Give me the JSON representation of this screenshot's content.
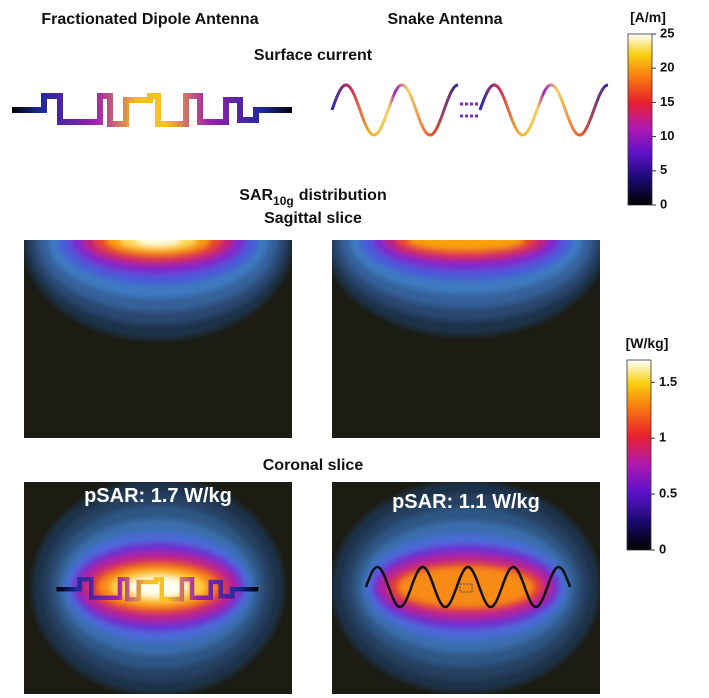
{
  "columns": [
    "Fractionated Dipole Antenna",
    "Snake Antenna"
  ],
  "surface_current": {
    "title": "Surface current"
  },
  "sar": {
    "title": {
      "main": "SAR",
      "sub": "10g",
      "rest": "distribution"
    },
    "sagittal": "Sagittal slice",
    "coronal": "Coronal slice",
    "psar": [
      "pSAR: 1.7 W/kg",
      "pSAR: 1.1 W/kg"
    ]
  },
  "colorbars": [
    {
      "unit": "[A/m]",
      "range": [
        0,
        25
      ],
      "ticks": [
        0,
        5,
        10,
        15,
        20,
        25
      ]
    },
    {
      "unit": "[W/kg]",
      "range": [
        0,
        1.7
      ],
      "ticks": [
        0,
        0.5,
        1,
        1.5
      ]
    }
  ]
}
